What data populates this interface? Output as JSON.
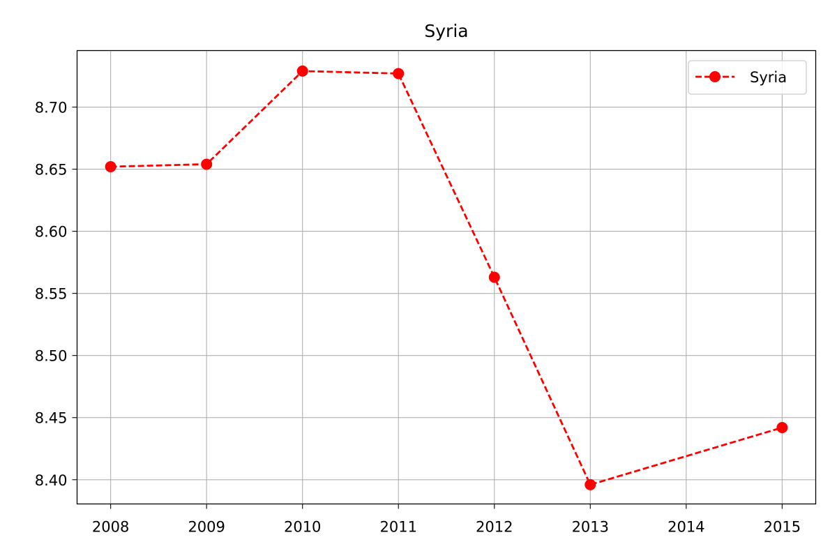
{
  "chart_data": {
    "type": "line",
    "title": "Syria",
    "xlabel": "",
    "ylabel": "",
    "x_ticks": [
      "2008",
      "2009",
      "2010",
      "2011",
      "2012",
      "2013",
      "2014",
      "2015"
    ],
    "y_ticks": [
      "8.40",
      "8.45",
      "8.50",
      "8.55",
      "8.60",
      "8.65",
      "8.70"
    ],
    "xlim": [
      2007.65,
      2015.35
    ],
    "ylim": [
      8.3805,
      8.7455
    ],
    "grid": true,
    "legend_position": "top-right",
    "series": [
      {
        "name": "Syria",
        "color": "#ff0000",
        "line_style": "dashed",
        "marker": "circle",
        "x": [
          2008,
          2009,
          2010,
          2011,
          2012,
          2013,
          2015
        ],
        "y": [
          8.652,
          8.654,
          8.729,
          8.727,
          8.563,
          8.396,
          8.442
        ]
      }
    ]
  }
}
